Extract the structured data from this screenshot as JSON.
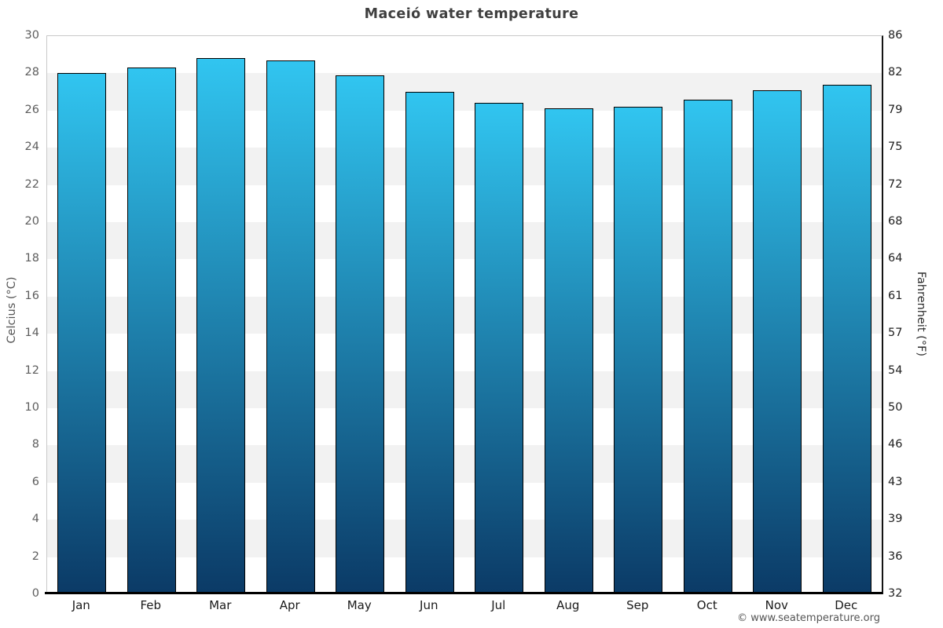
{
  "chart_data": {
    "type": "bar",
    "title": "Maceió water temperature",
    "categories": [
      "Jan",
      "Feb",
      "Mar",
      "Apr",
      "May",
      "Jun",
      "Jul",
      "Aug",
      "Sep",
      "Oct",
      "Nov",
      "Dec"
    ],
    "values": [
      28.0,
      28.3,
      28.8,
      28.7,
      27.9,
      27.0,
      26.4,
      26.1,
      26.2,
      26.6,
      27.1,
      27.4
    ],
    "ylabel_left": "Celcius (°C)",
    "ylabel_right": "Fahrenheit (°F)",
    "ylim": [
      0,
      30
    ],
    "ytick_step": 2,
    "yticks_celsius": [
      "30",
      "28",
      "26",
      "24",
      "22",
      "20",
      "18",
      "16",
      "14",
      "12",
      "10",
      "8",
      "6",
      "4",
      "2",
      "0"
    ],
    "yticks_fahrenheit": [
      "86",
      "82",
      "79",
      "75",
      "72",
      "68",
      "64",
      "61",
      "57",
      "54",
      "50",
      "46",
      "43",
      "39",
      "36",
      "32"
    ],
    "grid": "alternating-horizontal-bands",
    "legend": "none",
    "band_color": "#f2f2f2",
    "bar_gradient_top": "#31c5f0",
    "bar_gradient_bottom": "#0b3a66",
    "bar_border_color": "#000000",
    "footer": "© www.seatemperature.org"
  }
}
